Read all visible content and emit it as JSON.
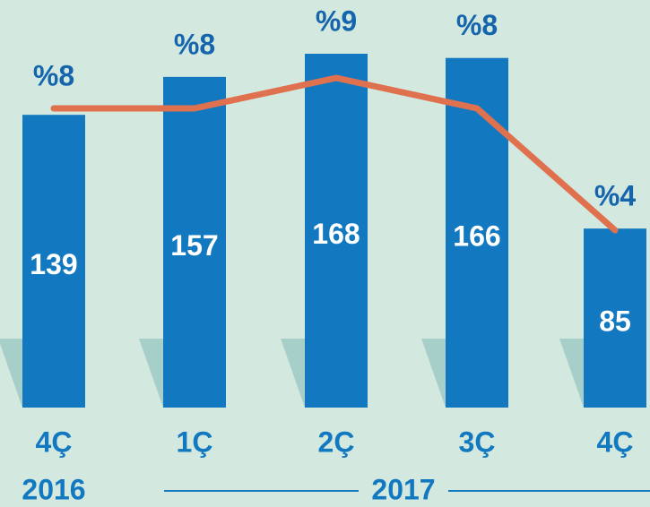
{
  "chart_data": {
    "type": "bar",
    "categories": [
      "4Ç",
      "1Ç",
      "2Ç",
      "3Ç",
      "4Ç"
    ],
    "groups": [
      "2016",
      "2017"
    ],
    "series": [
      {
        "type": "bar",
        "color": "#1279c0",
        "values": [
          139,
          157,
          168,
          166,
          85
        ]
      },
      {
        "type": "line",
        "color": "#e0714f",
        "values": [
          8,
          8,
          9,
          8,
          4
        ],
        "value_labels": [
          "%8",
          "%8",
          "%9",
          "%8",
          "%4"
        ]
      }
    ]
  }
}
